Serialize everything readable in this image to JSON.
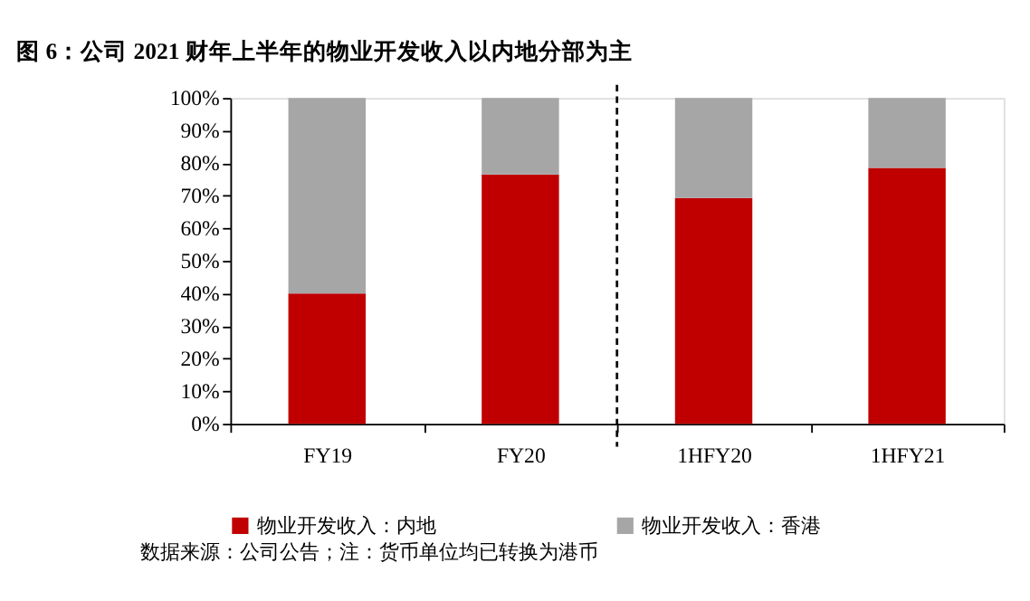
{
  "chart_data": {
    "type": "bar",
    "stacked": true,
    "title": "图 6：公司 2021 财年上半年的物业开发收入以内地分部为主",
    "categories": [
      "FY19",
      "FY20",
      "1HFY20",
      "1HFY21"
    ],
    "series": [
      {
        "name": "物业开发收入：内地",
        "color": "#c00000",
        "values": [
          40,
          76.5,
          69.3,
          78.5
        ]
      },
      {
        "name": "物业开发收入：香港",
        "color": "#a6a6a6",
        "values": [
          60,
          23.5,
          30.7,
          21.5
        ]
      }
    ],
    "ylim": [
      0,
      100
    ],
    "yticks": [
      {
        "value": 0,
        "label": "0%"
      },
      {
        "value": 10,
        "label": "10%"
      },
      {
        "value": 20,
        "label": "20%"
      },
      {
        "value": 30,
        "label": "30%"
      },
      {
        "value": 40,
        "label": "40%"
      },
      {
        "value": 50,
        "label": "50%"
      },
      {
        "value": 60,
        "label": "60%"
      },
      {
        "value": 70,
        "label": "70%"
      },
      {
        "value": 80,
        "label": "80%"
      },
      {
        "value": 90,
        "label": "90%"
      },
      {
        "value": 100,
        "label": "100%"
      }
    ],
    "grid": false,
    "legend": "bottom",
    "annotations": [
      "数据来源：公司公告；注：货币单位均已转换为港币"
    ]
  }
}
